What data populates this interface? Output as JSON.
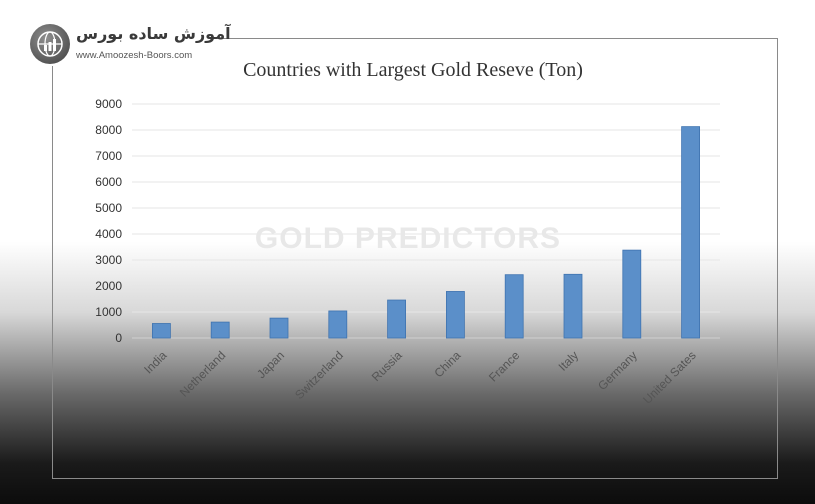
{
  "brand": {
    "name": "آموزش ساده بورس",
    "url": "www.Amoozesh-Boors.com",
    "icon": "chart-globe-icon"
  },
  "watermark": "GOLD PREDICTORS",
  "colors": {
    "bar": "#5b8fc9",
    "bar_edge": "#3f73b0",
    "grid": "#e6e6e6"
  },
  "chart_data": {
    "type": "bar",
    "title": "Countries with  Largest Gold Reseve (Ton)",
    "xlabel": "",
    "ylabel": "",
    "categories": [
      "India",
      "Netherland",
      "Japan",
      "Switzerland",
      "Russia",
      "China",
      "France",
      "Italy",
      "Germany",
      "United Sates"
    ],
    "values": [
      558,
      612,
      765,
      1040,
      1460,
      1790,
      2435,
      2450,
      3380,
      8130
    ],
    "ylim": [
      0,
      9000
    ],
    "yticks": [
      0,
      1000,
      2000,
      3000,
      4000,
      5000,
      6000,
      7000,
      8000,
      9000
    ],
    "grid": true,
    "legend": "none"
  }
}
